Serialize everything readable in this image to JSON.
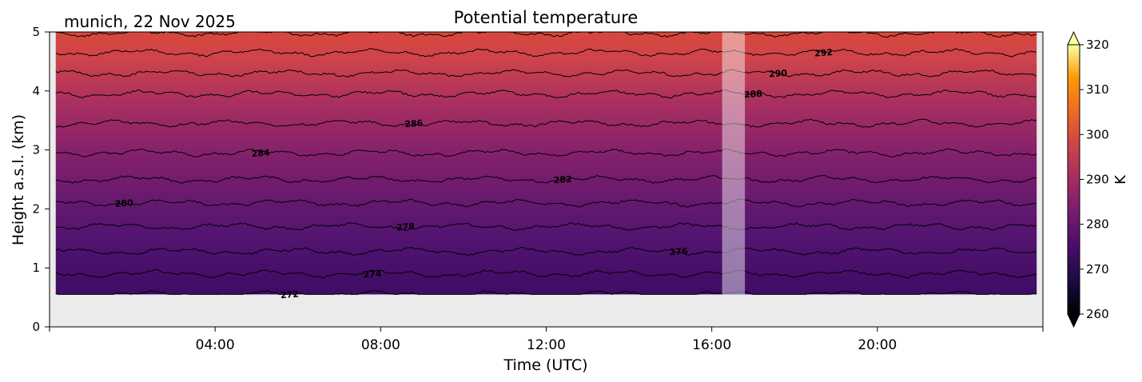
{
  "chart_data": {
    "type": "heatmap",
    "title": "Potential temperature",
    "subtitle": "munich, 22 Nov 2025",
    "xlabel": "Time (UTC)",
    "ylabel": "Height a.s.l. (km)",
    "xlim_hours": [
      0,
      24
    ],
    "ylim_km": [
      0,
      5
    ],
    "x_ticks": [
      "04:00",
      "08:00",
      "12:00",
      "16:00",
      "20:00"
    ],
    "x_tick_hours": [
      4,
      8,
      12,
      16,
      20
    ],
    "y_ticks": [
      "0",
      "1",
      "2",
      "3",
      "4",
      "5"
    ],
    "data_extent": {
      "time_start_hours": 0.15,
      "time_end_hours": 23.85,
      "height_bottom_km": 0.55,
      "height_top_km": 5.0
    },
    "missing_period_hours": [
      16.25,
      16.8
    ],
    "colorbar": {
      "label": "K",
      "ticks": [
        "260",
        "270",
        "280",
        "290",
        "300",
        "310",
        "320"
      ],
      "range": [
        260,
        320
      ],
      "colormap": "inferno",
      "extend": "both"
    },
    "contour_levels": [
      {
        "value": 272,
        "height_km": 0.55,
        "label": "272"
      },
      {
        "value": 274,
        "height_km": 0.9,
        "label": "274"
      },
      {
        "value": 276,
        "height_km": 1.28,
        "label": "276"
      },
      {
        "value": 278,
        "height_km": 1.7,
        "label": "278"
      },
      {
        "value": 280,
        "height_km": 2.1,
        "label": "280"
      },
      {
        "value": 282,
        "height_km": 2.5,
        "label": "282"
      },
      {
        "value": 284,
        "height_km": 2.95,
        "label": "284"
      },
      {
        "value": 286,
        "height_km": 3.45,
        "label": "286"
      },
      {
        "value": 288,
        "height_km": 3.95,
        "label": "288"
      },
      {
        "value": 290,
        "height_km": 4.3,
        "label": "290"
      },
      {
        "value": 292,
        "height_km": 4.65,
        "label": "292"
      },
      {
        "value": 294,
        "height_km": 4.98,
        "label": ""
      }
    ],
    "contour_label_hours": [
      5.8,
      7.8,
      15.2,
      8.6,
      1.8,
      12.4,
      5.1,
      8.8,
      17.0,
      17.6,
      18.7
    ]
  }
}
